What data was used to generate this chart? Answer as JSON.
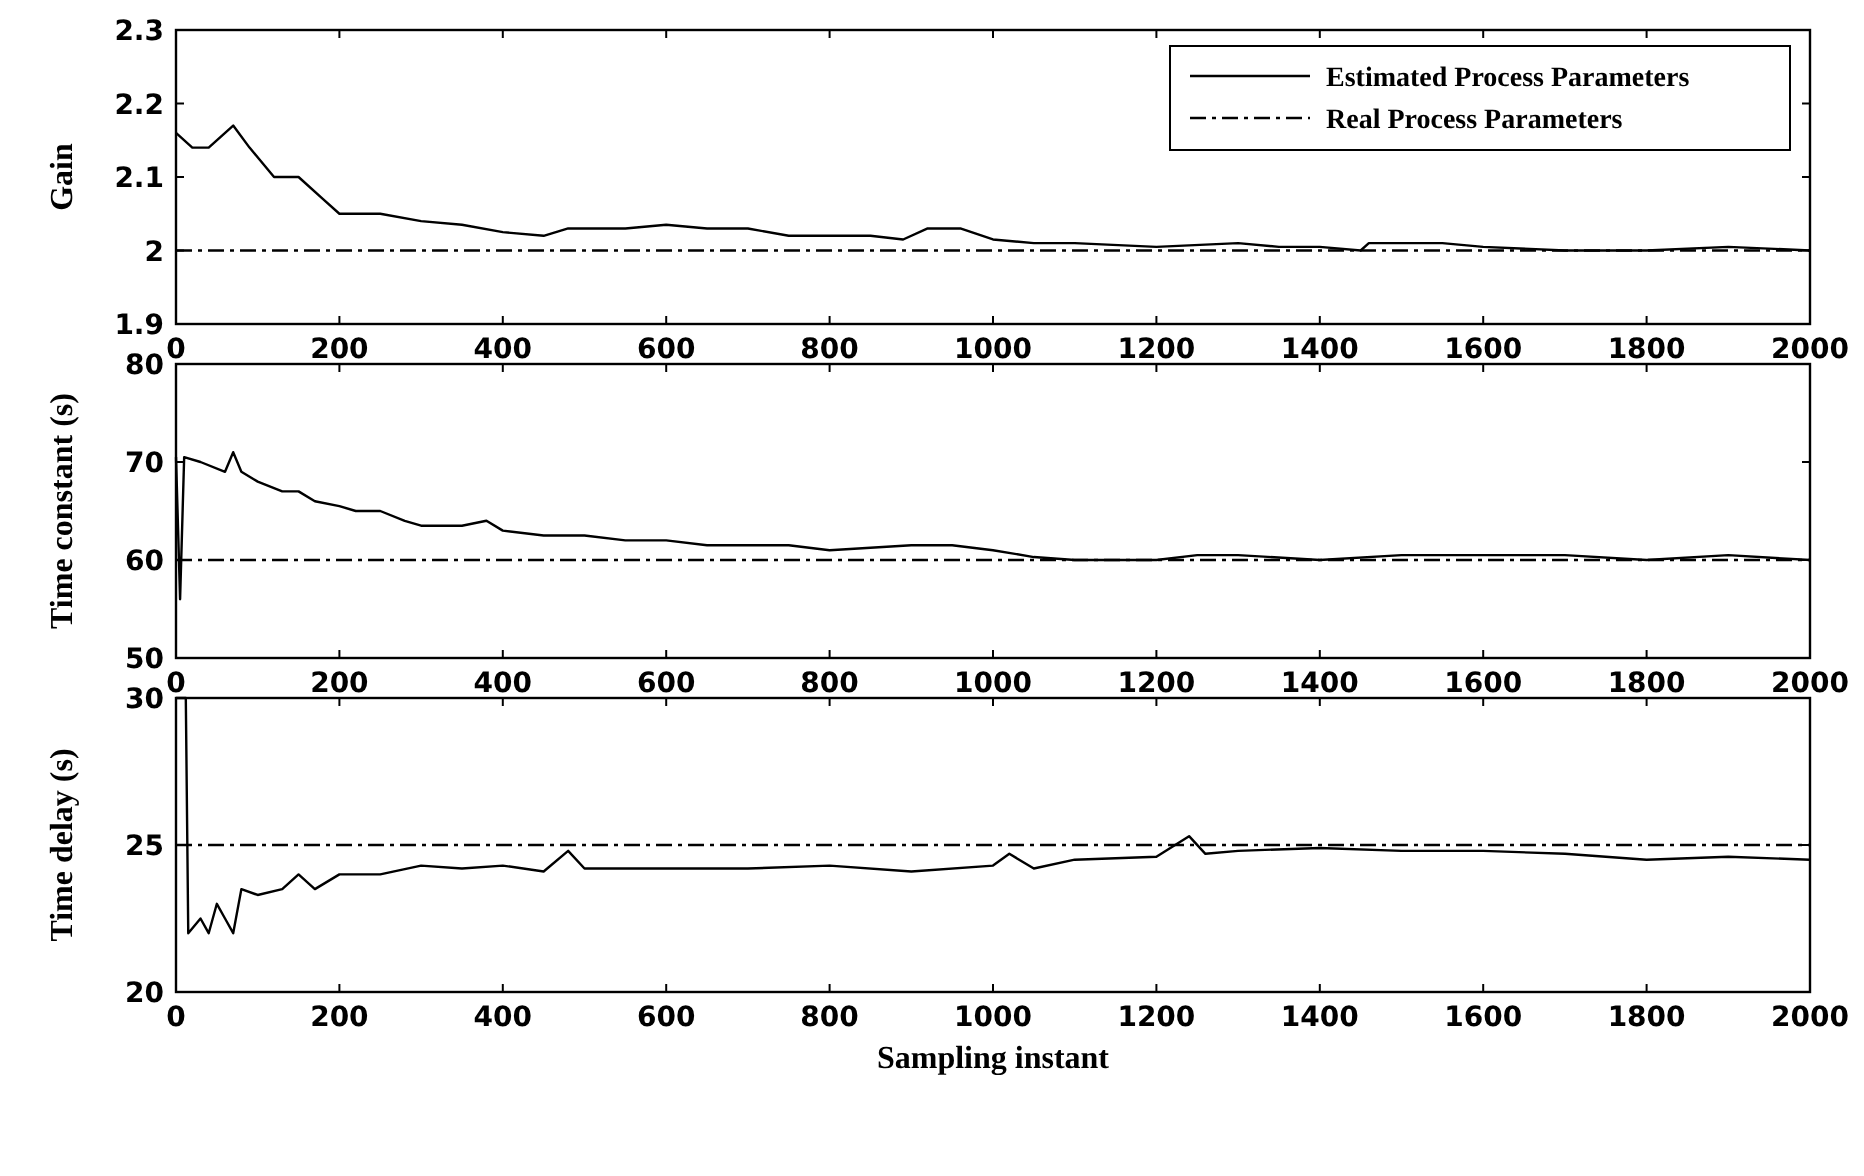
{
  "chart_data": [
    {
      "type": "line",
      "ylabel": "Gain",
      "xlim": [
        0,
        2000
      ],
      "xticks": [
        0,
        200,
        400,
        600,
        800,
        1000,
        1200,
        1400,
        1600,
        1800,
        2000
      ],
      "ylim": [
        1.9,
        2.3
      ],
      "yticks": [
        1.9,
        2,
        2.1,
        2.2,
        2.3
      ],
      "legend": "top right",
      "series": [
        {
          "name": "Estimated Process Parameters",
          "color": "#000000",
          "line_style": "solid",
          "x": [
            0,
            20,
            40,
            70,
            90,
            120,
            150,
            180,
            200,
            250,
            300,
            350,
            400,
            450,
            480,
            550,
            600,
            650,
            700,
            750,
            800,
            850,
            890,
            920,
            960,
            1000,
            1050,
            1100,
            1200,
            1300,
            1350,
            1400,
            1450,
            1460,
            1550,
            1600,
            1700,
            1800,
            1900,
            2000
          ],
          "values": [
            2.16,
            2.14,
            2.14,
            2.17,
            2.14,
            2.1,
            2.1,
            2.07,
            2.05,
            2.05,
            2.04,
            2.035,
            2.025,
            2.02,
            2.03,
            2.03,
            2.035,
            2.03,
            2.03,
            2.02,
            2.02,
            2.02,
            2.015,
            2.03,
            2.03,
            2.015,
            2.01,
            2.01,
            2.005,
            2.01,
            2.005,
            2.005,
            2,
            2.01,
            2.01,
            2.005,
            2,
            2,
            2.005,
            2
          ]
        },
        {
          "name": "Real Process Parameters",
          "color": "#000000",
          "line_style": "dashed",
          "x": [
            0,
            2000
          ],
          "values": [
            2,
            2
          ]
        }
      ]
    },
    {
      "type": "line",
      "ylabel": "Time constant (s)",
      "xlim": [
        0,
        2000
      ],
      "xticks": [
        0,
        200,
        400,
        600,
        800,
        1000,
        1200,
        1400,
        1600,
        1800,
        2000
      ],
      "ylim": [
        50,
        80
      ],
      "yticks": [
        50,
        60,
        70,
        80
      ],
      "series": [
        {
          "color": "#000000",
          "line_style": "solid",
          "x": [
            0,
            5,
            10,
            30,
            60,
            70,
            80,
            100,
            130,
            150,
            170,
            200,
            220,
            250,
            280,
            300,
            350,
            380,
            400,
            450,
            500,
            550,
            600,
            650,
            700,
            750,
            800,
            900,
            950,
            1000,
            1050,
            1100,
            1200,
            1250,
            1300,
            1400,
            1500,
            1600,
            1700,
            1800,
            1900,
            2000
          ],
          "values": [
            70.5,
            56,
            70.5,
            70,
            69,
            71,
            69,
            68,
            67,
            67,
            66,
            65.5,
            65,
            65,
            64,
            63.5,
            63.5,
            64,
            63,
            62.5,
            62.5,
            62,
            62,
            61.5,
            61.5,
            61.5,
            61,
            61.5,
            61.5,
            61,
            60.3,
            60,
            60,
            60.5,
            60.5,
            60,
            60.5,
            60.5,
            60.5,
            60,
            60.5,
            60
          ]
        },
        {
          "color": "#000000",
          "line_style": "dashed",
          "x": [
            0,
            2000
          ],
          "values": [
            60,
            60
          ]
        }
      ]
    },
    {
      "type": "line",
      "ylabel": "Time delay (s)",
      "xlabel": "Sampling instant",
      "xlim": [
        0,
        2000
      ],
      "xticks": [
        0,
        200,
        400,
        600,
        800,
        1000,
        1200,
        1400,
        1600,
        1800,
        2000
      ],
      "ylim": [
        20,
        30
      ],
      "yticks": [
        20,
        25,
        30
      ],
      "series": [
        {
          "color": "#000000",
          "line_style": "solid",
          "x": [
            0,
            12,
            15,
            30,
            40,
            50,
            60,
            70,
            80,
            100,
            130,
            150,
            170,
            200,
            250,
            300,
            350,
            400,
            450,
            480,
            500,
            600,
            700,
            800,
            900,
            1000,
            1020,
            1050,
            1100,
            1200,
            1240,
            1260,
            1300,
            1400,
            1500,
            1600,
            1700,
            1800,
            1900,
            2000
          ],
          "values": [
            30,
            30,
            22,
            22.5,
            22,
            23,
            22.5,
            22,
            23.5,
            23.3,
            23.5,
            24,
            23.5,
            24,
            24,
            24.3,
            24.2,
            24.3,
            24.1,
            24.8,
            24.2,
            24.2,
            24.2,
            24.3,
            24.1,
            24.3,
            24.7,
            24.2,
            24.5,
            24.6,
            25.3,
            24.7,
            24.8,
            24.9,
            24.8,
            24.8,
            24.7,
            24.5,
            24.6,
            24.5
          ]
        },
        {
          "color": "#000000",
          "line_style": "dashed",
          "x": [
            0,
            2000
          ],
          "values": [
            25,
            25
          ]
        }
      ]
    }
  ]
}
